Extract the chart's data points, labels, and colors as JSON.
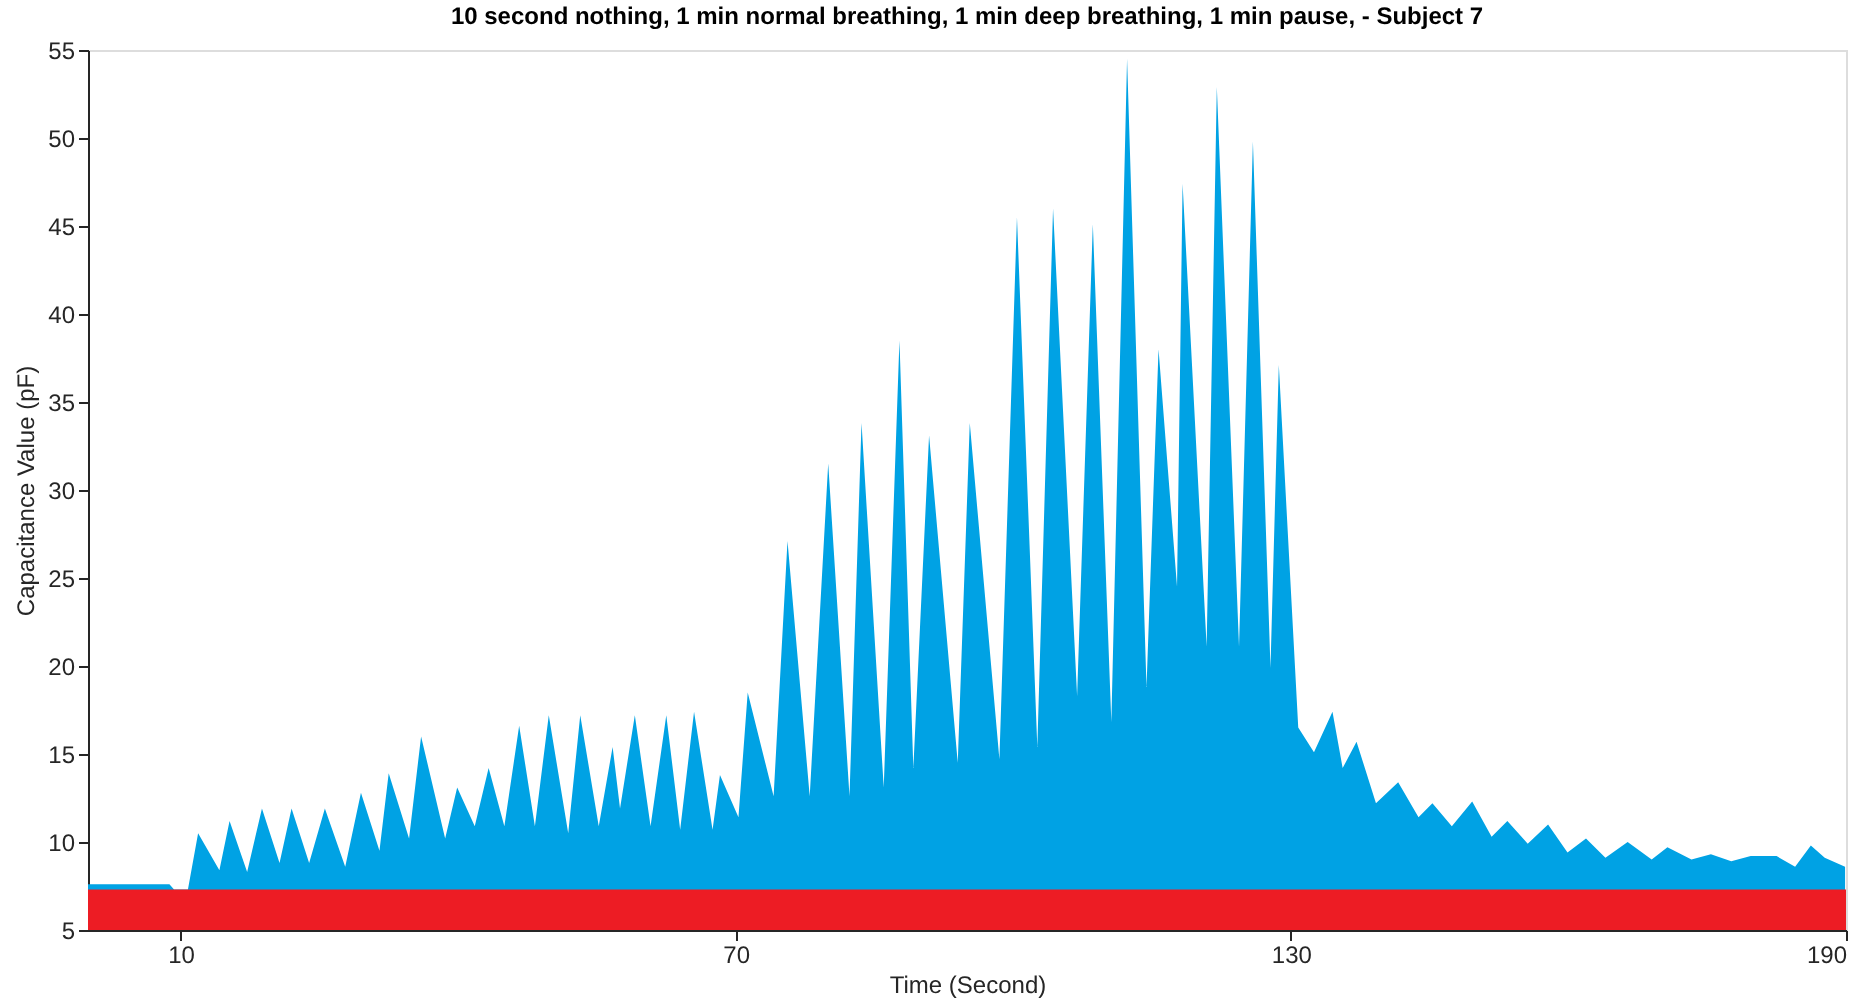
{
  "chart_data": {
    "type": "area",
    "title": "10 second nothing, 1 min normal breathing, 1 min deep breathing, 1 min pause, - Subject 7",
    "xlabel": "Time (Second)",
    "ylabel": "Capacitance Value (pF)",
    "xlim": [
      0,
      190
    ],
    "xticks": [
      10,
      70,
      130,
      190
    ],
    "ylim": [
      5,
      55
    ],
    "yticks": [
      5,
      10,
      15,
      20,
      25,
      30,
      35,
      40,
      45,
      50,
      55
    ],
    "grid": false,
    "series": [
      {
        "color": "#00a2e4",
        "x": [
          0.0,
          8.8,
          9.3,
          10.8,
          11.9,
          14.2,
          15.3,
          17.2,
          18.8,
          20.7,
          22.0,
          23.9,
          25.6,
          27.8,
          29.5,
          31.5,
          32.5,
          34.7,
          36.0,
          38.6,
          39.9,
          41.8,
          43.3,
          45.0,
          46.6,
          48.3,
          49.8,
          51.9,
          53.2,
          55.2,
          56.7,
          57.5,
          59.1,
          60.8,
          62.5,
          64.0,
          65.5,
          67.5,
          68.3,
          70.3,
          71.3,
          74.1,
          75.6,
          78.0,
          80.0,
          82.3,
          83.6,
          86.0,
          87.7,
          89.2,
          90.9,
          94.0,
          95.3,
          98.5,
          100.4,
          102.6,
          104.3,
          106.9,
          108.6,
          110.6,
          112.3,
          114.4,
          115.7,
          117.7,
          118.3,
          120.9,
          122.0,
          124.4,
          125.9,
          127.8,
          128.7,
          130.8,
          132.5,
          134.5,
          135.6,
          137.1,
          139.2,
          141.6,
          143.8,
          145.3,
          147.4,
          149.6,
          151.7,
          153.4,
          155.6,
          157.8,
          159.9,
          161.9,
          164.0,
          166.4,
          169.0,
          170.7,
          173.3,
          175.4,
          177.6,
          179.7,
          182.5,
          184.5,
          186.2,
          187.7,
          189.9
        ],
        "values": [
          7.6,
          7.6,
          7.3,
          7.3,
          10.5,
          8.4,
          11.2,
          8.3,
          11.9,
          8.8,
          11.9,
          8.8,
          11.9,
          8.6,
          12.8,
          9.5,
          13.9,
          10.2,
          16.0,
          10.2,
          13.1,
          10.9,
          14.2,
          10.9,
          16.6,
          10.9,
          17.2,
          10.5,
          17.2,
          10.9,
          15.4,
          11.9,
          17.2,
          10.9,
          17.2,
          10.7,
          17.4,
          10.7,
          13.8,
          11.4,
          18.5,
          12.6,
          27.1,
          12.6,
          31.5,
          12.6,
          33.8,
          13.1,
          38.5,
          14.2,
          33.1,
          14.5,
          33.8,
          14.7,
          45.5,
          15.4,
          46.0,
          18.3,
          45.1,
          16.8,
          54.5,
          18.8,
          38.0,
          24.5,
          47.4,
          21.1,
          52.9,
          21.1,
          49.8,
          19.9,
          37.1,
          16.5,
          15.1,
          17.4,
          14.2,
          15.7,
          12.2,
          13.4,
          11.4,
          12.2,
          10.9,
          12.3,
          10.3,
          11.2,
          9.9,
          11.0,
          9.4,
          10.2,
          9.1,
          10.0,
          9.0,
          9.7,
          9.0,
          9.3,
          8.9,
          9.2,
          9.2,
          8.6,
          9.8,
          9.1,
          8.6
        ]
      },
      {
        "color": "#ed1c24",
        "x": [
          0,
          190
        ],
        "values": [
          7.3,
          7.3
        ]
      }
    ]
  }
}
